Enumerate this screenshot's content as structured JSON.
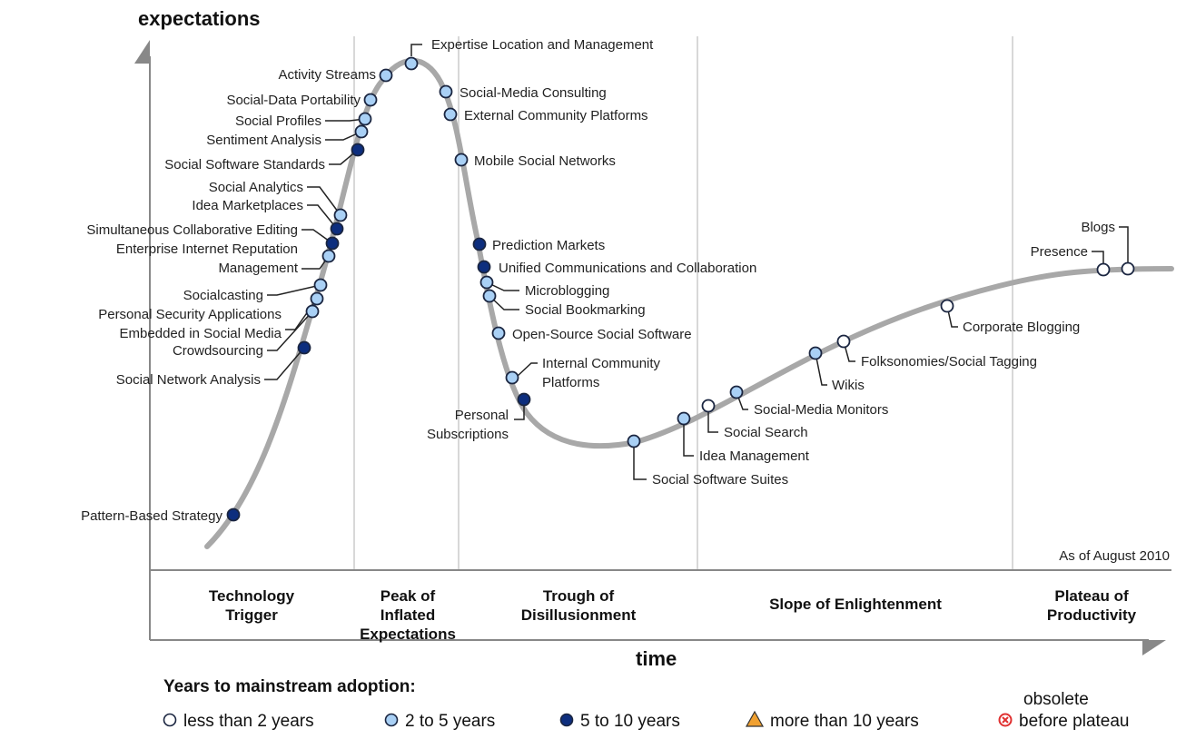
{
  "axes": {
    "y_label": "expectations",
    "x_label": "time"
  },
  "as_of": "As of August 2010",
  "phases": [
    {
      "lines": [
        "Technology",
        "Trigger"
      ]
    },
    {
      "lines": [
        "Peak of",
        "Inflated",
        "Expectations"
      ]
    },
    {
      "lines": [
        "Trough of",
        "Disillusionment"
      ]
    },
    {
      "lines": [
        "Slope of Enlightenment"
      ]
    },
    {
      "lines": [
        "Plateau of",
        "Productivity"
      ]
    }
  ],
  "colors": {
    "lt2": "#ffffff",
    "2to5": "#a9d0f5",
    "5to10": "#0d2e7e",
    "gt10": "#f0a030",
    "obsolete": "#e03030",
    "curve": "#a8a8a8"
  },
  "technologies": [
    {
      "lines": [
        "Pattern-Based Strategy"
      ],
      "adoption": "5to10"
    },
    {
      "lines": [
        "Social Network Analysis"
      ],
      "adoption": "5to10"
    },
    {
      "lines": [
        "Crowdsourcing"
      ],
      "adoption": "2to5"
    },
    {
      "lines": [
        "Personal Security Applications",
        "Embedded in Social Media"
      ],
      "adoption": "2to5"
    },
    {
      "lines": [
        "Socialcasting"
      ],
      "adoption": "2to5"
    },
    {
      "lines": [
        "Enterprise Internet Reputation",
        "Management"
      ],
      "adoption": "2to5"
    },
    {
      "lines": [
        "Simultaneous Collaborative Editing"
      ],
      "adoption": "5to10"
    },
    {
      "lines": [
        "Idea Marketplaces"
      ],
      "adoption": "5to10"
    },
    {
      "lines": [
        "Social Analytics"
      ],
      "adoption": "2to5"
    },
    {
      "lines": [
        "Social Software Standards"
      ],
      "adoption": "5to10"
    },
    {
      "lines": [
        "Sentiment Analysis"
      ],
      "adoption": "2to5"
    },
    {
      "lines": [
        "Social Profiles"
      ],
      "adoption": "2to5"
    },
    {
      "lines": [
        "Social-Data Portability"
      ],
      "adoption": "2to5"
    },
    {
      "lines": [
        "Activity Streams"
      ],
      "adoption": "2to5"
    },
    {
      "lines": [
        "Expertise Location and Management"
      ],
      "adoption": "2to5"
    },
    {
      "lines": [
        "Social-Media Consulting"
      ],
      "adoption": "2to5"
    },
    {
      "lines": [
        "External Community Platforms"
      ],
      "adoption": "2to5"
    },
    {
      "lines": [
        "Mobile Social Networks"
      ],
      "adoption": "2to5"
    },
    {
      "lines": [
        "Prediction Markets"
      ],
      "adoption": "5to10"
    },
    {
      "lines": [
        "Unified Communications and Collaboration"
      ],
      "adoption": "5to10"
    },
    {
      "lines": [
        "Microblogging"
      ],
      "adoption": "2to5"
    },
    {
      "lines": [
        "Social Bookmarking"
      ],
      "adoption": "2to5"
    },
    {
      "lines": [
        "Open-Source Social Software"
      ],
      "adoption": "2to5"
    },
    {
      "lines": [
        "Internal Community",
        "Platforms"
      ],
      "adoption": "2to5"
    },
    {
      "lines": [
        "Personal",
        "Subscriptions"
      ],
      "adoption": "5to10"
    },
    {
      "lines": [
        "Social Software Suites"
      ],
      "adoption": "2to5"
    },
    {
      "lines": [
        "Idea Management"
      ],
      "adoption": "2to5"
    },
    {
      "lines": [
        "Social Search"
      ],
      "adoption": "lt2"
    },
    {
      "lines": [
        "Social-Media Monitors"
      ],
      "adoption": "2to5"
    },
    {
      "lines": [
        "Wikis"
      ],
      "adoption": "2to5"
    },
    {
      "lines": [
        "Folksonomies/Social Tagging"
      ],
      "adoption": "lt2"
    },
    {
      "lines": [
        "Corporate Blogging"
      ],
      "adoption": "lt2"
    },
    {
      "lines": [
        "Presence"
      ],
      "adoption": "lt2"
    },
    {
      "lines": [
        "Blogs"
      ],
      "adoption": "lt2"
    }
  ],
  "legend": {
    "title": "Years to mainstream adoption:",
    "items": [
      {
        "key": "lt2",
        "label": "less than 2 years"
      },
      {
        "key": "2to5",
        "label": "2 to 5 years"
      },
      {
        "key": "5to10",
        "label": "5 to 10 years"
      },
      {
        "key": "gt10",
        "label": "more than 10 years"
      },
      {
        "key": "obsolete",
        "label_top": "obsolete",
        "label": "before plateau"
      }
    ]
  }
}
